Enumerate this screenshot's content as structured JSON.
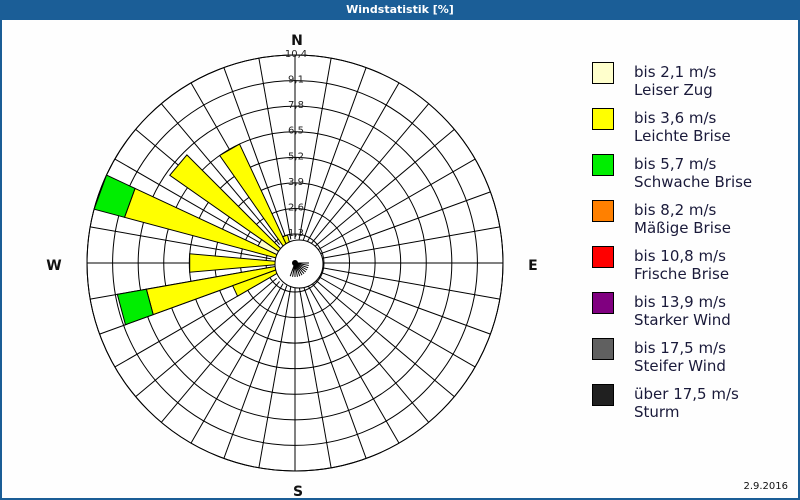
{
  "title": "Windstatistik [%]",
  "date": "2.9.2016",
  "chart_data": {
    "type": "polar-bar (wind rose)",
    "title": "Windstatistik [%]",
    "directions": {
      "N": "N",
      "E": "E",
      "S": "S",
      "W": "W"
    },
    "ring_labels": [
      "1,3",
      "2,6",
      "3,9",
      "5,2",
      "6,5",
      "7,8",
      "9,1",
      "10,4"
    ],
    "ring_values": [
      1.3,
      2.6,
      3.9,
      5.2,
      6.5,
      7.8,
      9.1,
      10.4
    ],
    "rmax": 10.4,
    "sector_width_deg": 10,
    "legend": [
      {
        "range": "bis 2,1 m/s",
        "name": "Leiser Zug",
        "color": "#ffffcc"
      },
      {
        "range": "bis 3,6 m/s",
        "name": "Leichte Brise",
        "color": "#ffff00"
      },
      {
        "range": "bis 5,7 m/s",
        "name": "Schwache Brise",
        "color": "#00ee00"
      },
      {
        "range": "bis 8,2 m/s",
        "name": "Mäßige Brise",
        "color": "#ff8000"
      },
      {
        "range": "bis 10,8 m/s",
        "name": "Frische Brise",
        "color": "#ff0000"
      },
      {
        "range": "bis 13,9 m/s",
        "name": "Starker Wind",
        "color": "#800080"
      },
      {
        "range": "bis 17,5 m/s",
        "name": "Steifer Wind",
        "color": "#606060"
      },
      {
        "range": "über 17,5 m/s",
        "name": "Sturm",
        "color": "#202020"
      }
    ],
    "sectors": [
      {
        "dir_deg": 330,
        "values": [
          0.2,
          6.3
        ]
      },
      {
        "dir_deg": 310,
        "values": [
          0.2,
          7.4
        ]
      },
      {
        "dir_deg": 290,
        "values": [
          0.3,
          8.5,
          1.6
        ]
      },
      {
        "dir_deg": 270,
        "values": [
          0.2,
          5.0
        ]
      },
      {
        "dir_deg": 255,
        "values": [
          0.2,
          7.3,
          1.5
        ]
      },
      {
        "dir_deg": 245,
        "values": [
          0.2,
          3.0
        ]
      },
      {
        "dir_deg": 300,
        "values": [
          1.9
        ]
      },
      {
        "dir_deg": 340,
        "values": [
          0.3,
          1.0
        ]
      }
    ]
  }
}
